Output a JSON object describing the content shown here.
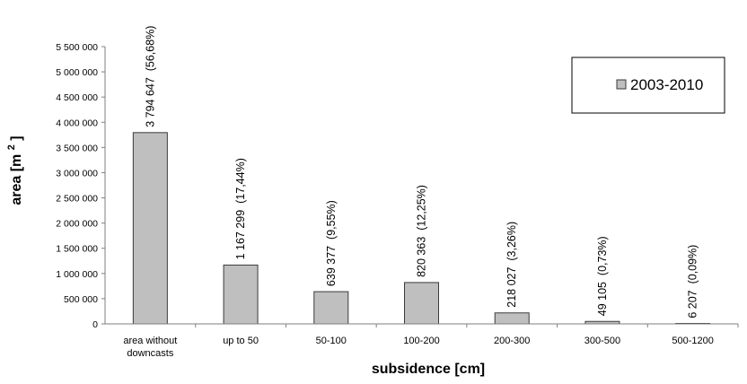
{
  "chart_data": {
    "type": "bar",
    "categories": [
      "area without\ndowncasts",
      "up to 50",
      "50-100",
      "100-200",
      "200-300",
      "300-500",
      "500-1200"
    ],
    "series": [
      {
        "name": "2003-2010",
        "values": [
          3794647,
          1167299,
          639377,
          820363,
          218027,
          49105,
          6207
        ]
      }
    ],
    "data_labels": [
      "3 794 647  (56,68%)",
      "1 167 299  (17,44%)",
      "639 377  (9,55%)",
      "820 363  (12,25%)",
      "218 027  (3,26%)",
      "49 105  (0,73%)",
      "6 207  (0,09%)"
    ],
    "title": "",
    "xlabel": "subsidence [cm]",
    "ylabel_text": "area [m",
    "ylabel_superscript": "2",
    "ylabel_close": "]",
    "ylim": [
      0,
      5500000
    ],
    "yticks": [
      0,
      500000,
      1000000,
      1500000,
      2000000,
      2500000,
      3000000,
      3500000,
      4000000,
      4500000,
      5000000,
      5500000
    ],
    "ytick_labels": [
      "0",
      "500 000",
      "1 000 000",
      "1 500 000",
      "2 000 000",
      "2 500 000",
      "3 000 000",
      "3 500 000",
      "4 000 000",
      "4 500 000",
      "5 000 000",
      "5 500 000"
    ],
    "grid": false,
    "legend_position": "top-right",
    "bar_color": "#bfbfbf",
    "bar_edge_color": "#3a3a3a"
  }
}
